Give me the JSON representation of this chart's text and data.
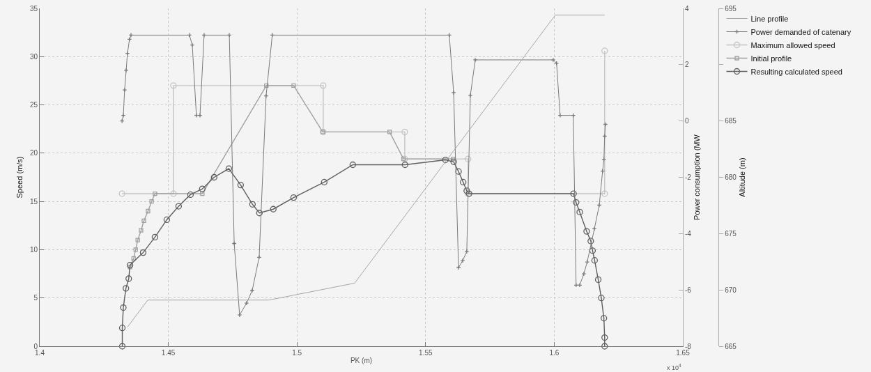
{
  "chart_data": {
    "type": "line",
    "xlabel": "PK (m)",
    "ylabel": "Speed (m/s)",
    "y2label": "Power consumption (MW",
    "y3label": "Altitude (m)",
    "xlim": [
      1.4,
      1.65
    ],
    "xticks": [
      1.4,
      1.45,
      1.5,
      1.55,
      1.6,
      1.65
    ],
    "ylim": [
      0,
      35
    ],
    "yticks": [
      0,
      5,
      10,
      15,
      20,
      25,
      30,
      35
    ],
    "y2lim": [
      -8,
      4
    ],
    "y2ticks": [
      -8,
      -6,
      -4,
      -2,
      0,
      2,
      4
    ],
    "y3lim": [
      665,
      695
    ],
    "y3ticks": [
      665,
      670,
      675,
      680,
      685,
      {
        "value": 690,
        "label": null
      },
      695
    ],
    "grid": true,
    "legend": "top right",
    "line_style": "solid",
    "annotations": [
      "x 10$^{4}$"
    ],
    "series": [
      {
        "name": "Line profile",
        "color": "#a6a6a6",
        "axis": "y3",
        "marker": "none",
        "x": [
          1.4341,
          1.442,
          1.4891,
          1.5224,
          1.6004,
          1.6196
        ],
        "values": [
          666.7,
          669.1,
          669.1,
          670.6,
          694.4,
          694.4
        ]
      },
      {
        "name": "Power demanded of catenary",
        "color": "#7a7a7a",
        "axis": "y2",
        "marker": "cross",
        "x": [
          1.432,
          1.4325,
          1.433,
          1.4336,
          1.4341,
          1.4349,
          1.4355,
          1.4582,
          1.4593,
          1.4609,
          1.4623,
          1.4639,
          1.4737,
          1.4756,
          1.4777,
          1.4804,
          1.4826,
          1.4853,
          1.488,
          1.4904,
          1.5592,
          1.5609,
          1.5628,
          1.5644,
          1.566,
          1.5674,
          1.5693,
          1.5996,
          1.6009,
          1.6023,
          1.6074,
          1.6085,
          1.6099,
          1.6115,
          1.6128,
          1.6156,
          1.6175,
          1.6188,
          1.6193,
          1.6196,
          1.6199
        ],
        "values": [
          0.0,
          0.2,
          1.1,
          1.8,
          2.4,
          2.9,
          3.05,
          3.05,
          2.7,
          0.2,
          0.2,
          3.05,
          3.05,
          -4.35,
          -6.89,
          -6.47,
          -6.02,
          -4.84,
          0.89,
          3.05,
          3.05,
          1.01,
          -5.21,
          -4.96,
          -4.64,
          0.91,
          2.17,
          2.17,
          2.05,
          0.2,
          0.2,
          -5.83,
          -5.83,
          -5.43,
          -5.01,
          -3.83,
          -2.99,
          -1.78,
          -1.36,
          -0.54,
          -0.12
        ]
      },
      {
        "name": "Maximum allowed speed",
        "color": "#c4c4c4",
        "axis": "y",
        "marker": "circle",
        "x": [
          1.432,
          1.452,
          1.452,
          1.5102,
          1.5102,
          1.5419,
          1.5419,
          1.5665,
          1.5665,
          1.6196,
          1.6196
        ],
        "values": [
          15.8,
          15.8,
          27.0,
          27.0,
          22.2,
          22.2,
          19.4,
          19.4,
          15.8,
          15.8,
          30.6
        ]
      },
      {
        "name": "Initial profile",
        "color": "#a0a0a0",
        "axis": "y",
        "marker": "square",
        "x": [
          1.4351,
          1.4365,
          1.4373,
          1.4381,
          1.4394,
          1.4405,
          1.4421,
          1.4435,
          1.4448,
          1.4632,
          1.4881,
          1.4987,
          1.51,
          1.536,
          1.5414,
          1.5607
        ],
        "values": [
          8.2,
          9.1,
          10.0,
          11.0,
          12.0,
          13.0,
          14.0,
          15.0,
          15.8,
          15.8,
          27.0,
          27.0,
          22.2,
          22.2,
          19.4,
          19.4
        ]
      },
      {
        "name": "Resulting calculated speed",
        "color": "#5e5e5e",
        "axis": "y",
        "marker": "circle",
        "x": [
          1.4321,
          1.4321,
          1.4325,
          1.4335,
          1.4346,
          1.4351,
          1.4402,
          1.4448,
          1.4494,
          1.454,
          1.4586,
          1.4632,
          1.4678,
          1.4735,
          1.4781,
          1.4827,
          1.4854,
          1.4908,
          1.4987,
          1.5106,
          1.5217,
          1.542,
          1.5577,
          1.5609,
          1.5628,
          1.5646,
          1.566,
          1.5669,
          1.6075,
          1.6085,
          1.6099,
          1.6126,
          1.6142,
          1.6149,
          1.6157,
          1.6171,
          1.6183,
          1.6193,
          1.6196,
          1.6196
        ],
        "values": [
          0,
          1.9,
          4.0,
          6.0,
          7.0,
          8.4,
          9.7,
          11.3,
          13.1,
          14.5,
          15.7,
          16.3,
          17.5,
          18.4,
          16.7,
          14.7,
          13.8,
          14.2,
          15.4,
          17.0,
          18.8,
          18.8,
          19.3,
          19.1,
          18.1,
          17.0,
          16.1,
          15.8,
          15.8,
          14.9,
          13.9,
          11.9,
          10.9,
          9.9,
          8.9,
          6.9,
          5.0,
          2.9,
          0.9,
          0
        ]
      }
    ]
  }
}
